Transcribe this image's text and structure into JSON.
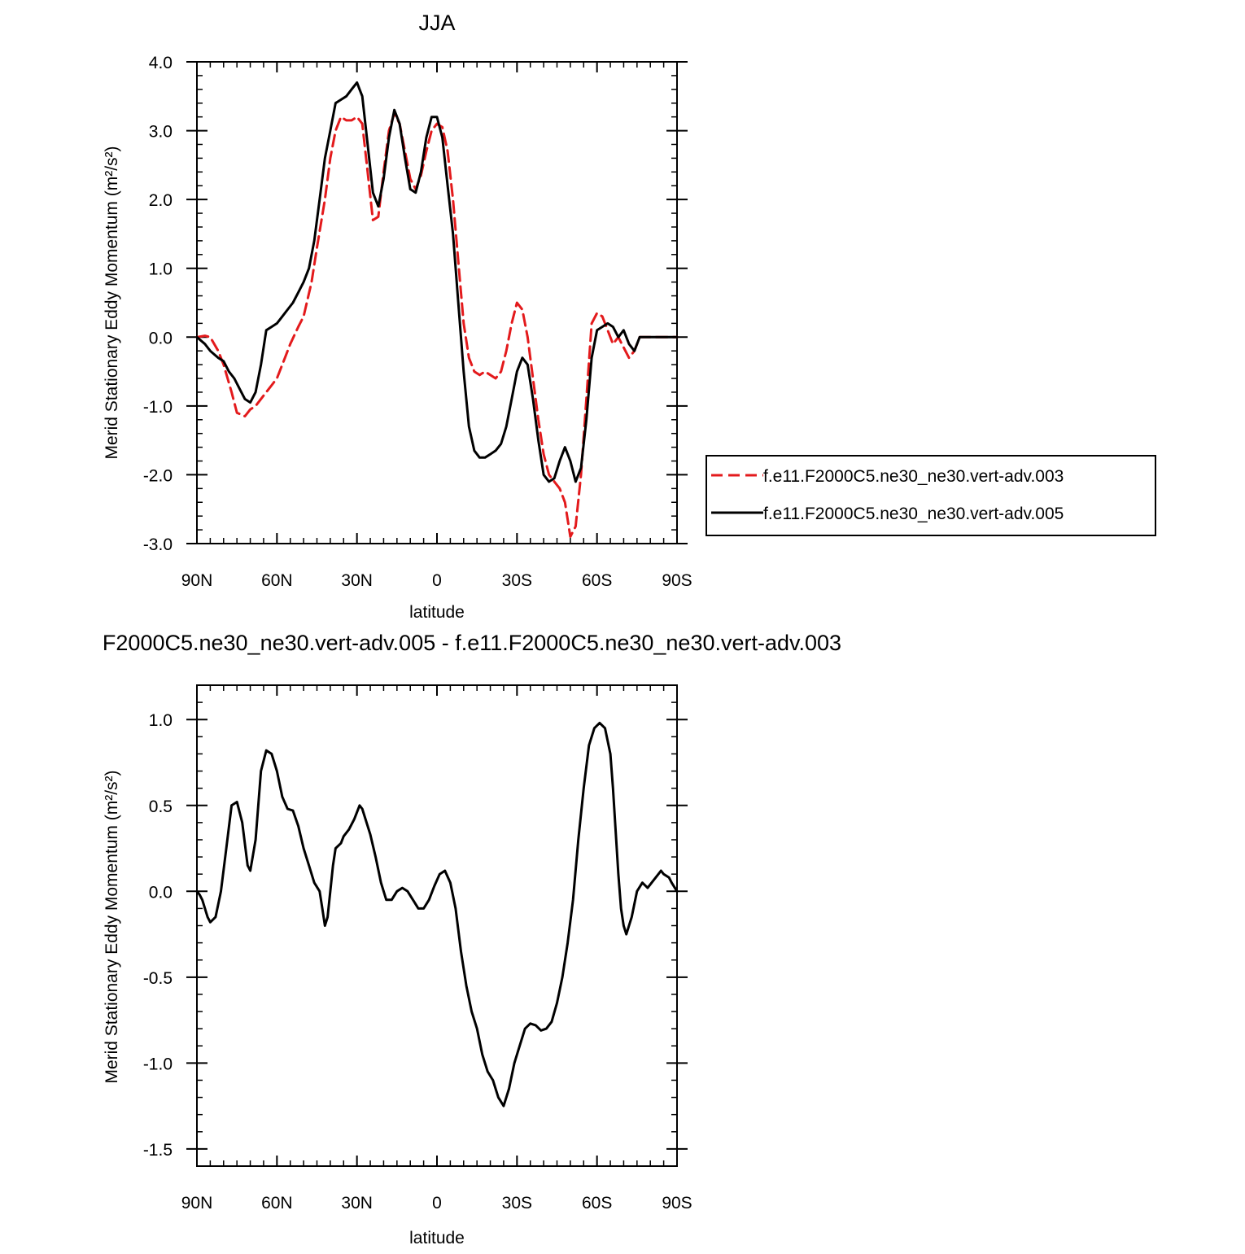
{
  "chart_data": [
    {
      "type": "line",
      "title": "JJA",
      "xlabel": "latitude",
      "ylabel": "Merid Stationary Eddy Momentum (m²/s²)",
      "xlim": [
        90,
        -90
      ],
      "ylim": [
        -3,
        4
      ],
      "x_ticks": [
        90,
        60,
        30,
        0,
        -30,
        -60,
        -90
      ],
      "x_tick_labels": [
        "90N",
        "60N",
        "30N",
        "0",
        "30S",
        "60S",
        "90S"
      ],
      "y_ticks": [
        -3,
        -2,
        -1,
        0,
        1,
        2,
        3,
        4
      ],
      "y_tick_labels": [
        "-3.0",
        "-2.0",
        "-1.0",
        "0.0",
        "1.0",
        "2.0",
        "3.0",
        "4.0"
      ],
      "grid": false,
      "legend_position": "right",
      "series": [
        {
          "name": "f.e11.F2000C5.ne30_ne30.vert-adv.003",
          "color": "#e31a1c",
          "dash": "dashed",
          "x": [
            90,
            87,
            85,
            82,
            80,
            77,
            75,
            72,
            70,
            68,
            65,
            62,
            60,
            57,
            55,
            52,
            50,
            47,
            45,
            42,
            40,
            38,
            36,
            34,
            32,
            30,
            28,
            26,
            24,
            22,
            20,
            18,
            16,
            14,
            12,
            10,
            8,
            6,
            4,
            2,
            0,
            -2,
            -4,
            -6,
            -8,
            -10,
            -12,
            -14,
            -16,
            -18,
            -20,
            -22,
            -24,
            -26,
            -28,
            -30,
            -32,
            -34,
            -36,
            -38,
            -40,
            -42,
            -44,
            -46,
            -48,
            -50,
            -52,
            -54,
            -56,
            -58,
            -60,
            -62,
            -64,
            -66,
            -68,
            -70,
            -72,
            -74,
            -76,
            -78,
            -80,
            -82,
            -84,
            -86,
            -88,
            -90
          ],
          "y": [
            0,
            0.02,
            0,
            -0.2,
            -0.4,
            -0.8,
            -1.1,
            -1.15,
            -1.05,
            -1.0,
            -0.85,
            -0.7,
            -0.6,
            -0.3,
            -0.1,
            0.15,
            0.3,
            0.8,
            1.3,
            2.0,
            2.6,
            3.0,
            3.2,
            3.15,
            3.15,
            3.2,
            3.1,
            2.4,
            1.7,
            1.75,
            2.4,
            3.0,
            3.25,
            3.1,
            2.7,
            2.3,
            2.15,
            2.35,
            2.7,
            3.0,
            3.1,
            3.05,
            2.7,
            2.0,
            1.1,
            0.2,
            -0.3,
            -0.5,
            -0.55,
            -0.5,
            -0.55,
            -0.6,
            -0.5,
            -0.2,
            0.2,
            0.5,
            0.4,
            0.0,
            -0.6,
            -1.2,
            -1.7,
            -2.0,
            -2.1,
            -2.2,
            -2.4,
            -2.9,
            -2.75,
            -2.0,
            -0.9,
            0.2,
            0.35,
            0.3,
            0.1,
            -0.1,
            0.0,
            -0.15,
            -0.3,
            -0.2,
            0.0,
            0.0,
            0.0,
            0.0,
            0.0,
            0.0,
            0.0,
            0.0
          ]
        },
        {
          "name": "f.e11.F2000C5.ne30_ne30.vert-adv.005",
          "color": "#000000",
          "dash": "solid",
          "x": [
            90,
            87,
            85,
            82,
            80,
            78,
            76,
            74,
            72,
            70,
            68,
            66,
            64,
            62,
            60,
            58,
            56,
            54,
            52,
            50,
            48,
            46,
            44,
            42,
            40,
            38,
            36,
            34,
            32,
            30,
            29,
            28,
            26,
            24,
            22,
            20,
            18,
            16,
            14,
            12,
            10,
            8,
            6,
            4,
            2,
            0,
            -2,
            -4,
            -6,
            -8,
            -10,
            -12,
            -14,
            -16,
            -18,
            -20,
            -22,
            -24,
            -26,
            -28,
            -30,
            -32,
            -34,
            -36,
            -38,
            -40,
            -42,
            -44,
            -46,
            -48,
            -50,
            -52,
            -54,
            -56,
            -58,
            -60,
            -62,
            -64,
            -66,
            -68,
            -70,
            -72,
            -74,
            -76,
            -78,
            -80,
            -82,
            -84,
            -86,
            -88,
            -90
          ],
          "y": [
            0,
            -0.1,
            -0.2,
            -0.3,
            -0.35,
            -0.5,
            -0.6,
            -0.75,
            -0.9,
            -0.95,
            -0.8,
            -0.4,
            0.1,
            0.15,
            0.2,
            0.3,
            0.4,
            0.5,
            0.65,
            0.8,
            1.0,
            1.4,
            2.0,
            2.6,
            3.0,
            3.4,
            3.45,
            3.5,
            3.6,
            3.7,
            3.6,
            3.5,
            2.8,
            2.1,
            1.9,
            2.3,
            2.9,
            3.3,
            3.1,
            2.6,
            2.15,
            2.1,
            2.4,
            2.9,
            3.2,
            3.2,
            2.9,
            2.2,
            1.5,
            0.5,
            -0.5,
            -1.3,
            -1.65,
            -1.75,
            -1.75,
            -1.7,
            -1.65,
            -1.55,
            -1.3,
            -0.9,
            -0.5,
            -0.3,
            -0.4,
            -0.9,
            -1.5,
            -2.0,
            -2.1,
            -2.05,
            -1.8,
            -1.6,
            -1.8,
            -2.1,
            -1.9,
            -1.2,
            -0.3,
            0.1,
            0.15,
            0.2,
            0.15,
            0.0,
            0.1,
            -0.1,
            -0.2,
            0.0,
            0.0,
            0.0,
            0.0,
            0.0,
            0.0,
            0.0,
            0.0
          ]
        }
      ]
    },
    {
      "type": "line",
      "title": "F2000C5.ne30_ne30.vert-adv.005 - f.e11.F2000C5.ne30_ne30.vert-adv.003",
      "xlabel": "latitude",
      "ylabel": "Merid Stationary Eddy Momentum (m²/s²)",
      "xlim": [
        90,
        -90
      ],
      "ylim": [
        -1.6,
        1.2
      ],
      "x_ticks": [
        90,
        60,
        30,
        0,
        -30,
        -60,
        -90
      ],
      "x_tick_labels": [
        "90N",
        "60N",
        "30N",
        "0",
        "30S",
        "60S",
        "90S"
      ],
      "y_ticks": [
        -1.5,
        -1.0,
        -0.5,
        0.0,
        0.5,
        1.0
      ],
      "y_tick_labels": [
        "-1.5",
        "-1.0",
        "-0.5",
        "0.0",
        "0.5",
        "1.0"
      ],
      "grid": false,
      "series": [
        {
          "color": "#000000",
          "dash": "solid",
          "x": [
            90,
            89,
            88,
            86,
            85,
            83,
            81,
            79,
            77,
            75,
            73,
            71,
            70,
            68,
            66,
            64,
            62,
            60,
            58,
            56,
            54,
            52,
            50,
            48,
            46,
            44,
            43,
            42,
            41,
            40,
            39,
            38,
            36,
            35,
            33,
            31,
            29,
            28,
            27,
            25,
            23,
            21,
            19,
            17,
            15,
            13,
            11,
            9,
            7,
            5,
            3,
            1,
            -1,
            -3,
            -5,
            -7,
            -9,
            -11,
            -13,
            -15,
            -17,
            -19,
            -21,
            -23,
            -25,
            -27,
            -29,
            -31,
            -33,
            -35,
            -37,
            -39,
            -41,
            -43,
            -45,
            -47,
            -49,
            -51,
            -53,
            -55,
            -57,
            -59,
            -61,
            -63,
            -65,
            -66,
            -67,
            -68,
            -69,
            -70,
            -71,
            -73,
            -75,
            -77,
            -79,
            -81,
            -83,
            -84,
            -85,
            -87,
            -88,
            -90
          ],
          "y": [
            0.0,
            -0.02,
            -0.05,
            -0.15,
            -0.18,
            -0.15,
            0.0,
            0.25,
            0.5,
            0.52,
            0.4,
            0.15,
            0.12,
            0.3,
            0.7,
            0.82,
            0.8,
            0.7,
            0.55,
            0.48,
            0.47,
            0.38,
            0.25,
            0.15,
            0.05,
            0.0,
            -0.1,
            -0.2,
            -0.15,
            0.0,
            0.15,
            0.25,
            0.28,
            0.32,
            0.36,
            0.42,
            0.5,
            0.48,
            0.43,
            0.33,
            0.2,
            0.05,
            -0.05,
            -0.05,
            0.0,
            0.02,
            0.0,
            -0.05,
            -0.1,
            -0.1,
            -0.05,
            0.03,
            0.1,
            0.12,
            0.05,
            -0.1,
            -0.35,
            -0.55,
            -0.7,
            -0.8,
            -0.95,
            -1.05,
            -1.1,
            -1.2,
            -1.25,
            -1.15,
            -1.0,
            -0.9,
            -0.8,
            -0.77,
            -0.78,
            -0.81,
            -0.8,
            -0.76,
            -0.65,
            -0.5,
            -0.3,
            -0.05,
            0.3,
            0.6,
            0.85,
            0.95,
            0.98,
            0.95,
            0.8,
            0.6,
            0.35,
            0.1,
            -0.1,
            -0.2,
            -0.25,
            -0.15,
            0.0,
            0.05,
            0.02,
            0.06,
            0.1,
            0.12,
            0.1,
            0.08,
            0.05,
            0.0
          ]
        }
      ]
    }
  ]
}
